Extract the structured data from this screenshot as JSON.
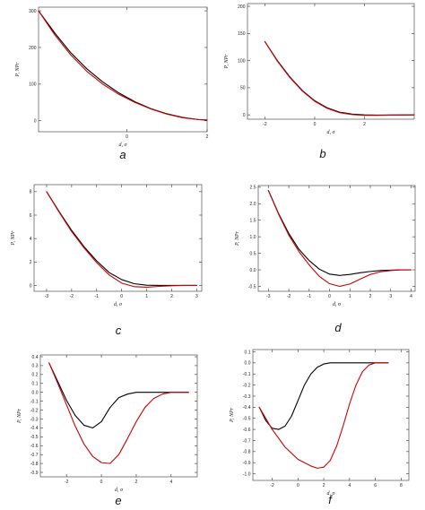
{
  "chart_data": [
    {
      "panel": "a",
      "type": "line",
      "caption": "a",
      "xlabel": "d, σ",
      "ylabel": "P, NPr",
      "xlim": [
        -2.2,
        2
      ],
      "ylim": [
        -30,
        310
      ],
      "xticks": [
        0,
        2
      ],
      "yticks": [
        0,
        100,
        200,
        300
      ],
      "grid": false,
      "series": [
        {
          "color": "#000000",
          "x": [
            -2.2,
            -1.8,
            -1.4,
            -1.0,
            -0.6,
            -0.2,
            0.2,
            0.6,
            1.0,
            1.4,
            1.8,
            2.0
          ],
          "y": [
            300,
            240,
            186,
            142,
            106,
            76,
            52,
            33,
            19,
            9,
            3,
            2
          ]
        },
        {
          "color": "#cc0000",
          "x": [
            -2.2,
            -1.8,
            -1.4,
            -1.0,
            -0.6,
            -0.2,
            0.2,
            0.6,
            1.0,
            1.4,
            1.8,
            2.0
          ],
          "y": [
            300,
            235,
            180,
            135,
            100,
            72,
            50,
            32,
            18,
            8,
            3,
            2
          ]
        }
      ]
    },
    {
      "panel": "b",
      "type": "line",
      "caption": "b",
      "xlabel": "d, σ",
      "ylabel": "P, NPr",
      "xlim": [
        -2.7,
        4
      ],
      "ylim": [
        -8,
        205
      ],
      "xticks": [
        -2,
        0,
        2
      ],
      "yticks": [
        0,
        50,
        100,
        150,
        200
      ],
      "grid": false,
      "series": [
        {
          "color": "#000000",
          "x": [
            -2.0,
            -1.5,
            -1.0,
            -0.5,
            0.0,
            0.5,
            1.0,
            1.5,
            2.0,
            2.5,
            3.0,
            4.0
          ],
          "y": [
            135,
            100,
            70,
            45,
            26,
            13,
            5,
            1.5,
            0,
            -0.5,
            -0.3,
            0
          ]
        },
        {
          "color": "#cc0000",
          "x": [
            -2.0,
            -1.5,
            -1.0,
            -0.5,
            0.0,
            0.5,
            1.0,
            1.5,
            2.0,
            2.5,
            3.0,
            4.0
          ],
          "y": [
            135,
            99,
            69,
            44,
            25,
            12,
            4,
            0.5,
            -1,
            -1,
            -0.5,
            0
          ]
        }
      ]
    },
    {
      "panel": "c",
      "type": "line",
      "caption": "c",
      "xlabel": "d, σ",
      "ylabel": "P, NPr",
      "xlim": [
        -3.5,
        3.2
      ],
      "ylim": [
        -0.5,
        8.6
      ],
      "xticks": [
        -3,
        -2,
        -1,
        0,
        1,
        2,
        3
      ],
      "yticks": [
        0,
        2,
        4,
        6,
        8
      ],
      "grid": false,
      "series": [
        {
          "color": "#000000",
          "x": [
            -3.0,
            -2.5,
            -2.0,
            -1.5,
            -1.0,
            -0.5,
            0.0,
            0.5,
            1.0,
            1.5,
            2.0,
            2.5,
            3.0
          ],
          "y": [
            8.0,
            6.3,
            4.7,
            3.3,
            2.1,
            1.1,
            0.5,
            0.15,
            0.02,
            0,
            0,
            0,
            0
          ]
        },
        {
          "color": "#cc0000",
          "x": [
            -3.0,
            -2.5,
            -2.0,
            -1.5,
            -1.0,
            -0.5,
            0.0,
            0.5,
            1.0,
            1.5,
            2.0,
            2.5,
            3.0
          ],
          "y": [
            8.0,
            6.25,
            4.6,
            3.2,
            1.95,
            0.9,
            0.2,
            -0.1,
            -0.15,
            -0.08,
            -0.03,
            0,
            0
          ]
        }
      ]
    },
    {
      "panel": "d",
      "type": "line",
      "caption": "d",
      "xlabel": "d, σ",
      "ylabel": "P, NPr",
      "xlim": [
        -3.5,
        4.2
      ],
      "ylim": [
        -0.65,
        2.55
      ],
      "xticks": [
        -3,
        -2,
        -1,
        0,
        1,
        2,
        3,
        4
      ],
      "yticks": [
        -0.5,
        0.0,
        0.5,
        1.0,
        1.5,
        2.0,
        2.5
      ],
      "ytick_labels": [
        "-0.5",
        "0.0",
        "0.5",
        "1.0",
        "1.5",
        "2.0",
        "2.5"
      ],
      "grid": false,
      "series": [
        {
          "color": "#000000",
          "x": [
            -3.0,
            -2.5,
            -2.0,
            -1.5,
            -1.0,
            -0.5,
            0.0,
            0.5,
            1.0,
            1.5,
            2.0,
            2.5,
            3.0,
            3.5,
            4.0
          ],
          "y": [
            2.4,
            1.7,
            1.1,
            0.62,
            0.28,
            0.02,
            -0.13,
            -0.17,
            -0.14,
            -0.09,
            -0.05,
            -0.02,
            -0.01,
            0,
            0
          ]
        },
        {
          "color": "#cc0000",
          "x": [
            -3.0,
            -2.5,
            -2.0,
            -1.5,
            -1.0,
            -0.5,
            0.0,
            0.5,
            1.0,
            1.5,
            2.0,
            2.5,
            3.0,
            3.5,
            4.0
          ],
          "y": [
            2.4,
            1.68,
            1.05,
            0.55,
            0.15,
            -0.2,
            -0.42,
            -0.5,
            -0.43,
            -0.28,
            -0.14,
            -0.06,
            -0.02,
            0,
            0
          ]
        }
      ]
    },
    {
      "panel": "e",
      "type": "line",
      "caption": "e",
      "xlabel": "d, σ",
      "ylabel": "P, NPr",
      "xlim": [
        -3.5,
        5.5
      ],
      "ylim": [
        -0.95,
        0.42
      ],
      "xticks": [
        -2,
        0,
        2,
        4
      ],
      "yticks": [
        0.4,
        0.3,
        0.2,
        0.1,
        0.0,
        -0.1,
        -0.2,
        -0.3,
        -0.4,
        -0.5,
        -0.6,
        -0.7,
        -0.8,
        -0.9
      ],
      "ytick_labels": [
        "0.4",
        "0.3",
        "0.2",
        "0.1",
        "0.0",
        "-0.1",
        "-0.2",
        "-0.3",
        "-0.4",
        "-0.5",
        "-0.6",
        "-0.7",
        "-0.8",
        "-0.9"
      ],
      "grid": false,
      "series": [
        {
          "color": "#000000",
          "x": [
            -3.0,
            -2.5,
            -2.0,
            -1.5,
            -1.0,
            -0.5,
            0.0,
            0.5,
            1.0,
            1.5,
            2.0,
            3.0,
            4.0,
            5.0
          ],
          "y": [
            0.33,
            0.12,
            -0.09,
            -0.26,
            -0.37,
            -0.4,
            -0.33,
            -0.17,
            -0.06,
            -0.02,
            0,
            0,
            0,
            0
          ]
        },
        {
          "color": "#cc0000",
          "x": [
            -3.0,
            -2.5,
            -2.0,
            -1.5,
            -1.0,
            -0.5,
            0.0,
            0.5,
            1.0,
            1.5,
            2.0,
            2.5,
            3.0,
            3.5,
            4.0,
            5.0
          ],
          "y": [
            0.33,
            0.1,
            -0.14,
            -0.38,
            -0.58,
            -0.72,
            -0.79,
            -0.8,
            -0.7,
            -0.52,
            -0.33,
            -0.17,
            -0.07,
            -0.02,
            0,
            0
          ]
        }
      ]
    },
    {
      "panel": "f",
      "type": "line",
      "caption": "f",
      "xlabel": "d, σ",
      "ylabel": "P, NPr",
      "xlim": [
        -3.5,
        8.6
      ],
      "ylim": [
        -1.06,
        0.12
      ],
      "xticks": [
        -2,
        0,
        2,
        4,
        6,
        8
      ],
      "yticks": [
        0.1,
        0.0,
        -0.1,
        -0.2,
        -0.3,
        -0.4,
        -0.5,
        -0.6,
        -0.7,
        -0.8,
        -0.9,
        -1.0
      ],
      "ytick_labels": [
        "0.1",
        "0.0",
        "-0.1",
        "-0.2",
        "-0.3",
        "-0.4",
        "-0.5",
        "-0.6",
        "-0.7",
        "-0.8",
        "-0.9",
        "-1.0"
      ],
      "grid": false,
      "series": [
        {
          "color": "#000000",
          "x": [
            -3.0,
            -2.5,
            -2.0,
            -1.5,
            -1.0,
            -0.5,
            0.0,
            0.5,
            1.0,
            1.5,
            2.0,
            2.5,
            3.0,
            4.0,
            5.0,
            6.0,
            7.0
          ],
          "y": [
            -0.4,
            -0.52,
            -0.59,
            -0.6,
            -0.57,
            -0.48,
            -0.34,
            -0.2,
            -0.1,
            -0.04,
            -0.01,
            0,
            0,
            0,
            0,
            0,
            0
          ]
        },
        {
          "color": "#cc0000",
          "x": [
            -3.0,
            -2.0,
            -1.0,
            0.0,
            1.0,
            1.5,
            2.0,
            2.5,
            3.0,
            3.5,
            4.0,
            4.5,
            5.0,
            5.5,
            6.0,
            7.0
          ],
          "y": [
            -0.4,
            -0.6,
            -0.76,
            -0.87,
            -0.93,
            -0.95,
            -0.94,
            -0.88,
            -0.75,
            -0.57,
            -0.37,
            -0.2,
            -0.08,
            -0.02,
            0,
            0
          ]
        }
      ]
    }
  ]
}
